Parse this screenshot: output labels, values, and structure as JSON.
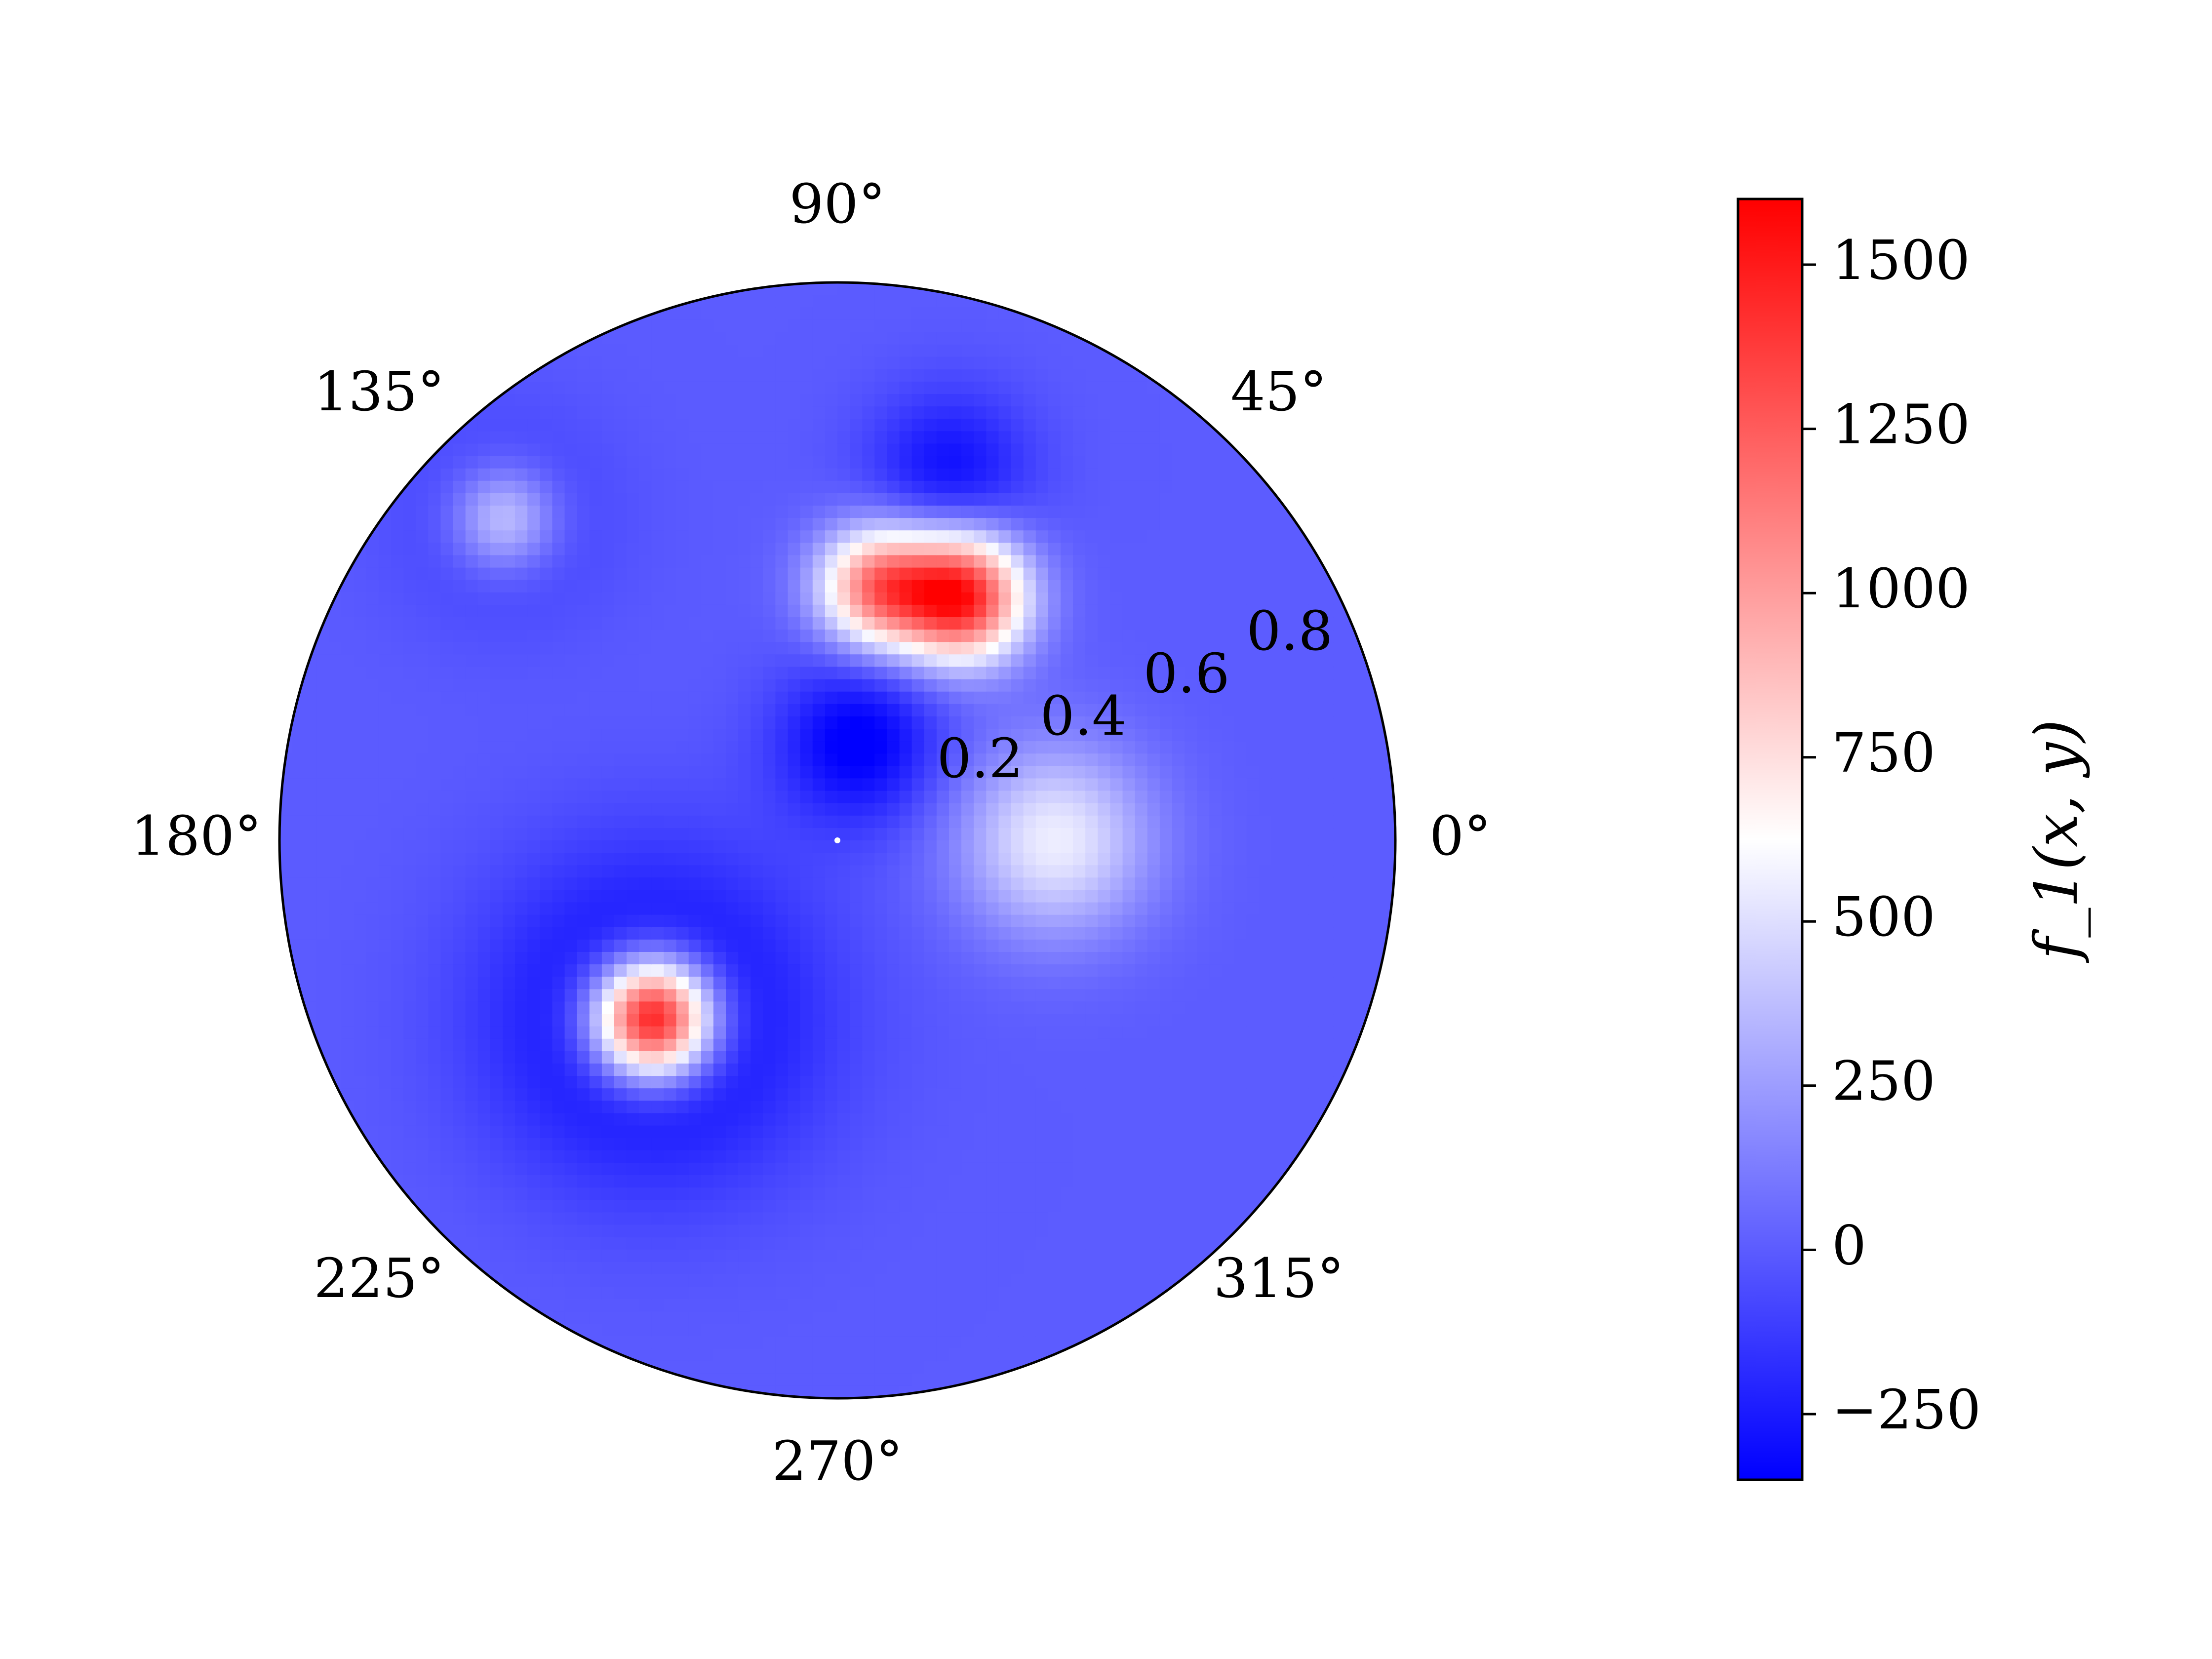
{
  "chart_data": {
    "type": "heatmap",
    "projection": "polar",
    "title": "",
    "colormap": "bwr",
    "colors": {
      "low": "#0000ff",
      "mid": "#ffffff",
      "high": "#ff0000",
      "frame": "#000000"
    },
    "theta_ticks": [
      "0°",
      "45°",
      "90°",
      "135°",
      "180°",
      "225°",
      "270°",
      "315°"
    ],
    "theta_tick_values": [
      0,
      45,
      90,
      135,
      180,
      225,
      270,
      315
    ],
    "r_ticks": [
      "0.2",
      "0.4",
      "0.6",
      "0.8"
    ],
    "r_tick_values": [
      0.2,
      0.4,
      0.6,
      0.8
    ],
    "rlim": [
      0,
      1
    ],
    "grid": false,
    "colorbar": {
      "label": "f_1(x, y)",
      "min": -350,
      "max": 1600,
      "center": 625,
      "ticks": [
        "−250",
        "0",
        "250",
        "500",
        "750",
        "1000",
        "1250",
        "1500"
      ],
      "tick_values": [
        -250,
        0,
        250,
        500,
        750,
        1000,
        1250,
        1500
      ]
    },
    "field": {
      "baseline": 0,
      "components": [
        {
          "r": 0.46,
          "theta_deg": 224,
          "amplitude": 1850,
          "spread": 0.075
        },
        {
          "r": 0.46,
          "theta_deg": 224,
          "amplitude": -420,
          "spread": 0.2
        },
        {
          "r": 0.49,
          "theta_deg": 63,
          "amplitude": 1500,
          "spread": 0.08
        },
        {
          "r": 0.46,
          "theta_deg": 81,
          "amplitude": 1100,
          "spread": 0.075
        },
        {
          "r": 0.69,
          "theta_deg": 73,
          "amplitude": -300,
          "spread": 0.1
        },
        {
          "r": 0.18,
          "theta_deg": 78,
          "amplitude": -380,
          "spread": 0.1
        },
        {
          "r": 0.39,
          "theta_deg": 0,
          "amplitude": 560,
          "spread": 0.12
        },
        {
          "r": 0.83,
          "theta_deg": 136,
          "amplitude": 480,
          "spread": 0.065
        },
        {
          "r": 0.83,
          "theta_deg": 136,
          "amplitude": -130,
          "spread": 0.14
        }
      ]
    }
  }
}
